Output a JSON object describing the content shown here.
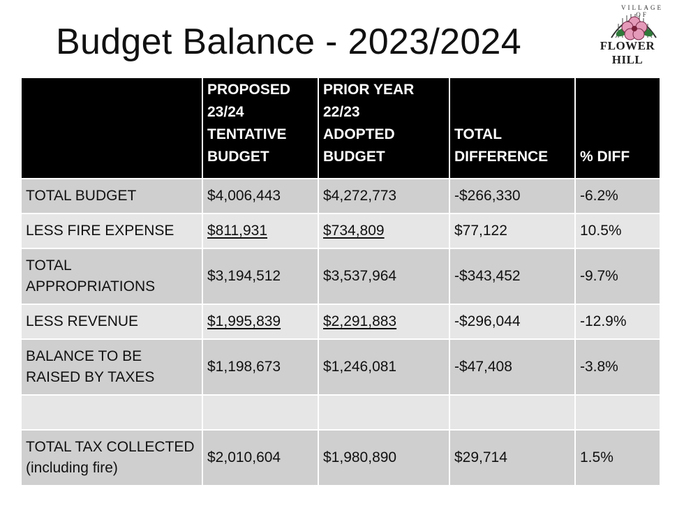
{
  "title": "Budget Balance - 2023/2024",
  "logo": {
    "arc_text": "VILLAGE OF",
    "name_text": "FLOWER HILL"
  },
  "table": {
    "headers": [
      "",
      "PROPOSED 23/24 TENTATIVE BUDGET",
      "PRIOR YEAR 22/23 ADOPTED BUDGET",
      "TOTAL DIFFERENCE",
      "% DIFF"
    ],
    "header_lines": {
      "proposed": [
        "PROPOSED",
        "23/24",
        "TENTATIVE",
        "BUDGET"
      ],
      "prior": [
        "PRIOR YEAR",
        "22/23",
        "ADOPTED",
        "BUDGET"
      ],
      "diff": [
        "TOTAL",
        "DIFFERENCE"
      ],
      "pct": [
        "% DIFF"
      ]
    },
    "rows": [
      {
        "label": "TOTAL BUDGET",
        "proposed": "$4,006,443",
        "prior": "$4,272,773",
        "difference": "-$266,330",
        "pct": "-6.2%"
      },
      {
        "label": "LESS FIRE EXPENSE",
        "proposed": "$811,931",
        "prior": "$734,809",
        "difference": "$77,122",
        "pct": "10.5%"
      },
      {
        "label": "TOTAL APPROPRIATIONS",
        "proposed": "$3,194,512",
        "prior": "$3,537,964",
        "difference": "-$343,452",
        "pct": "-9.7%"
      },
      {
        "label": "LESS REVENUE",
        "proposed": "$1,995,839",
        "prior": "$2,291,883",
        "difference": "-$296,044",
        "pct": "-12.9%"
      },
      {
        "label": "BALANCE TO BE RAISED BY TAXES",
        "proposed": "$1,198,673",
        "prior": "$1,246,081",
        "difference": "-$47,408",
        "pct": "-3.8%"
      },
      {
        "label": "",
        "proposed": "",
        "prior": "",
        "difference": "",
        "pct": ""
      },
      {
        "label": "TOTAL TAX COLLECTED (including fire)",
        "proposed": "$2,010,604",
        "prior": "$1,980,890",
        "difference": "$29,714",
        "pct": "1.5%"
      }
    ],
    "label_lines": {
      "total_appropriations": [
        "TOTAL",
        "APPROPRIATIONS"
      ],
      "balance": [
        "BALANCE TO BE",
        "RAISED BY TAXES"
      ],
      "total_tax": [
        "TOTAL TAX COLLECTED",
        "(including fire)"
      ]
    }
  }
}
